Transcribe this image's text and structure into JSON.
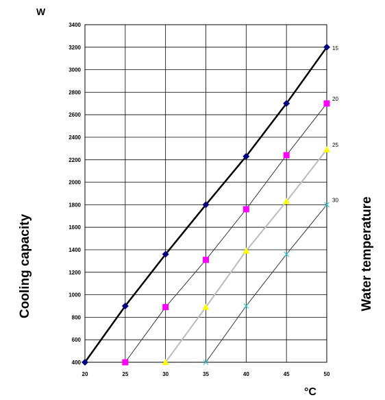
{
  "chart_data": {
    "type": "line",
    "y_unit": "W",
    "x_unit": "°C",
    "ylabel": "Cooling capacity",
    "right_label": "Water temperature",
    "xlim": [
      20,
      50
    ],
    "ylim": [
      400,
      3400
    ],
    "x_ticks": [
      "20",
      "25",
      "30",
      "35",
      "40",
      "45",
      "50"
    ],
    "y_ticks": [
      "400",
      "600",
      "800",
      "1000",
      "1200",
      "1400",
      "1600",
      "1800",
      "2000",
      "2200",
      "2400",
      "2600",
      "2800",
      "3000",
      "3200",
      "3400"
    ],
    "grid": true,
    "series": [
      {
        "name": "15",
        "color": "#000080",
        "marker": "diamond",
        "line_color": "#000000",
        "line_width": 2.5,
        "x": [
          20,
          25,
          30,
          35,
          40,
          45,
          50
        ],
        "y": [
          400,
          900,
          1360,
          1800,
          2230,
          2700,
          3200
        ]
      },
      {
        "name": "20",
        "color": "#ff00ff",
        "marker": "square",
        "line_color": "#333333",
        "line_width": 1,
        "x": [
          25,
          30,
          35,
          40,
          45,
          50
        ],
        "y": [
          400,
          890,
          1310,
          1760,
          2240,
          2700
        ]
      },
      {
        "name": "25",
        "color": "#ffff00",
        "marker": "triangle",
        "line_color": "#bbbbbb",
        "line_width": 2,
        "x": [
          30,
          35,
          40,
          45,
          50
        ],
        "y": [
          400,
          890,
          1390,
          1830,
          2290
        ]
      },
      {
        "name": "30",
        "color": "#33cccc",
        "marker": "x",
        "line_color": "#333333",
        "line_width": 1,
        "x": [
          35,
          40,
          45,
          50
        ],
        "y": [
          400,
          900,
          1360,
          1800
        ]
      }
    ]
  }
}
